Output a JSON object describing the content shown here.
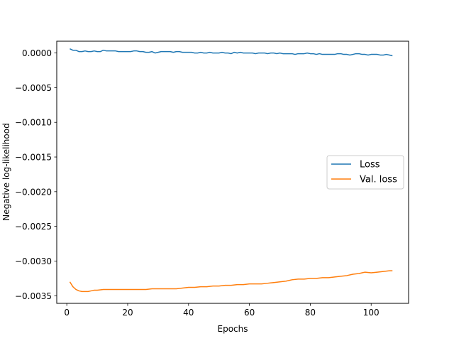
{
  "chart_data": {
    "type": "line",
    "xlabel": "Epochs",
    "ylabel": "Negative log-likelihood",
    "xlim": [
      -3.3,
      112.3
    ],
    "ylim": [
      -0.00361,
      0.00017
    ],
    "xticks": [
      0,
      20,
      40,
      60,
      80,
      100
    ],
    "xtick_labels": [
      "0",
      "20",
      "40",
      "60",
      "80",
      "100"
    ],
    "yticks": [
      0.0,
      -0.0005,
      -0.001,
      -0.0015,
      -0.002,
      -0.0025,
      -0.003,
      -0.0035
    ],
    "ytick_labels": [
      "0.0000",
      "−0.0005",
      "−0.0010",
      "−0.0015",
      "−0.0020",
      "−0.0025",
      "−0.0030",
      "−0.0035"
    ],
    "grid": false,
    "legend_position": "center-right",
    "series": [
      {
        "name": "Loss",
        "color": "#1f77b4",
        "x": [
          1,
          2,
          3,
          4,
          5,
          6,
          7,
          8,
          9,
          10,
          11,
          12,
          13,
          14,
          15,
          16,
          17,
          18,
          19,
          20,
          21,
          22,
          23,
          24,
          25,
          26,
          27,
          28,
          29,
          30,
          31,
          32,
          33,
          34,
          35,
          36,
          37,
          38,
          39,
          40,
          41,
          42,
          43,
          44,
          45,
          46,
          47,
          48,
          49,
          50,
          51,
          52,
          53,
          54,
          55,
          56,
          57,
          58,
          59,
          60,
          61,
          62,
          63,
          64,
          65,
          66,
          67,
          68,
          69,
          70,
          71,
          72,
          73,
          74,
          75,
          76,
          77,
          78,
          79,
          80,
          81,
          82,
          83,
          84,
          85,
          86,
          87,
          88,
          89,
          90,
          91,
          92,
          93,
          94,
          95,
          96,
          97,
          98,
          99,
          100,
          101,
          102,
          103,
          104,
          105,
          106,
          107
        ],
        "y": [
          6e-05,
          4e-05,
          4e-05,
          2e-05,
          2e-05,
          3e-05,
          2e-05,
          2e-05,
          3e-05,
          2e-05,
          2e-05,
          4e-05,
          3e-05,
          3e-05,
          3e-05,
          3e-05,
          2e-05,
          2e-05,
          2e-05,
          2e-05,
          2e-05,
          3e-05,
          3e-05,
          2e-05,
          2e-05,
          1e-05,
          1e-05,
          2e-05,
          0.0,
          1e-05,
          2e-05,
          2e-05,
          2e-05,
          2e-05,
          1e-05,
          2e-05,
          2e-05,
          1e-05,
          1e-05,
          1e-05,
          1e-05,
          0.0,
          0.0,
          1e-05,
          0.0,
          0.0,
          1e-05,
          0.0,
          0.0,
          0.0,
          1e-05,
          0.0,
          0.0,
          -1e-05,
          1e-05,
          0.0,
          1e-05,
          0.0,
          0.0,
          0.0,
          0.0,
          -1e-05,
          0.0,
          0.0,
          0.0,
          -1e-05,
          0.0,
          0.0,
          -1e-05,
          0.0,
          -1e-05,
          -1e-05,
          -1e-05,
          -1e-05,
          -2e-05,
          -1e-05,
          -1e-05,
          -1e-05,
          0.0,
          -1e-05,
          -1e-05,
          -2e-05,
          -1e-05,
          -2e-05,
          -2e-05,
          -2e-05,
          -2e-05,
          -2e-05,
          -1e-05,
          -1e-05,
          -2e-05,
          -2e-05,
          -3e-05,
          -2e-05,
          -1e-05,
          -1e-05,
          -2e-05,
          -2e-05,
          -3e-05,
          -2e-05,
          -2e-05,
          -2e-05,
          -3e-05,
          -3e-05,
          -2e-05,
          -3e-05,
          -4e-05
        ]
      },
      {
        "name": "Val. loss",
        "color": "#ff7f0e",
        "x": [
          1,
          2,
          3,
          4,
          5,
          6,
          7,
          8,
          9,
          10,
          12,
          14,
          16,
          18,
          20,
          22,
          24,
          26,
          28,
          30,
          32,
          34,
          36,
          38,
          40,
          42,
          44,
          46,
          48,
          50,
          52,
          54,
          56,
          58,
          60,
          62,
          64,
          66,
          68,
          70,
          72,
          74,
          76,
          78,
          80,
          82,
          84,
          86,
          88,
          90,
          92,
          94,
          96,
          98,
          100,
          102,
          104,
          106,
          107
        ],
        "y": [
          -0.0033,
          -0.00337,
          -0.00341,
          -0.00343,
          -0.00344,
          -0.00344,
          -0.00344,
          -0.00343,
          -0.00342,
          -0.00342,
          -0.00341,
          -0.00341,
          -0.00341,
          -0.00341,
          -0.00341,
          -0.00341,
          -0.00341,
          -0.00341,
          -0.0034,
          -0.0034,
          -0.0034,
          -0.0034,
          -0.0034,
          -0.00339,
          -0.00338,
          -0.00338,
          -0.00337,
          -0.00337,
          -0.00336,
          -0.00336,
          -0.00335,
          -0.00335,
          -0.00334,
          -0.00334,
          -0.00333,
          -0.00333,
          -0.00333,
          -0.00332,
          -0.00331,
          -0.0033,
          -0.00329,
          -0.00327,
          -0.00326,
          -0.00326,
          -0.00325,
          -0.00325,
          -0.00324,
          -0.00324,
          -0.00323,
          -0.00322,
          -0.00321,
          -0.00319,
          -0.00318,
          -0.00316,
          -0.00317,
          -0.00316,
          -0.00315,
          -0.00314,
          -0.00314
        ]
      }
    ]
  }
}
